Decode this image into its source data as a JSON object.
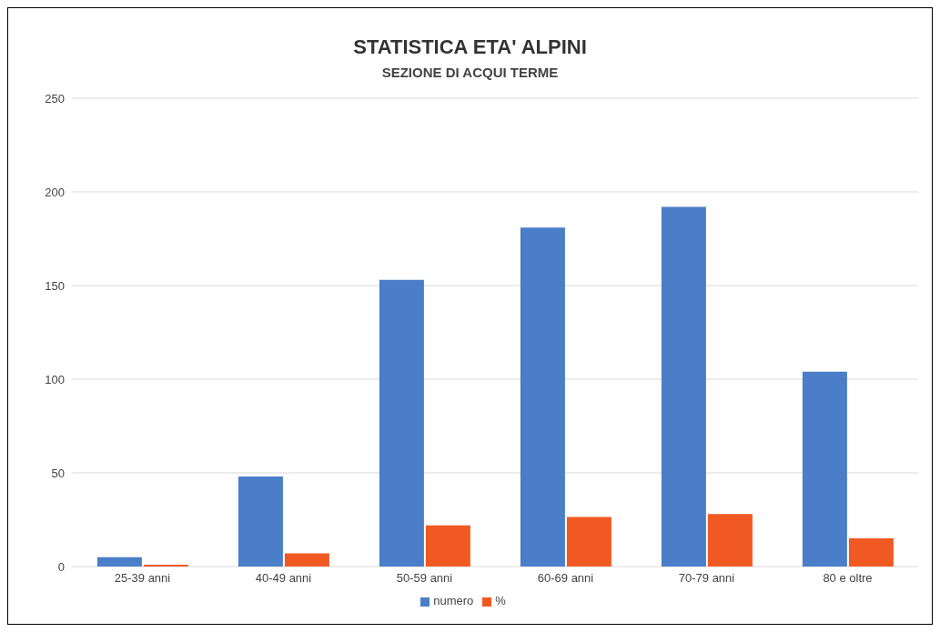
{
  "chart_data": {
    "type": "bar",
    "title": "STATISTICA ETA' ALPINI",
    "subtitle": "SEZIONE DI ACQUI TERME",
    "categories": [
      "25-39 anni",
      "40-49 anni",
      "50-59 anni",
      "60-69 anni",
      "70-79 anni",
      "80 e oltre"
    ],
    "series": [
      {
        "name": "numero",
        "color": "#4a7ec8",
        "values": [
          5,
          48,
          153,
          181,
          192,
          104
        ]
      },
      {
        "name": "%",
        "color": "#f05a22",
        "values": [
          1,
          7,
          22,
          26.5,
          28,
          15
        ]
      }
    ],
    "ylim": [
      0,
      250
    ],
    "yticks": [
      0,
      50,
      100,
      150,
      200,
      250
    ],
    "grid": "y",
    "legend": "bottom"
  }
}
